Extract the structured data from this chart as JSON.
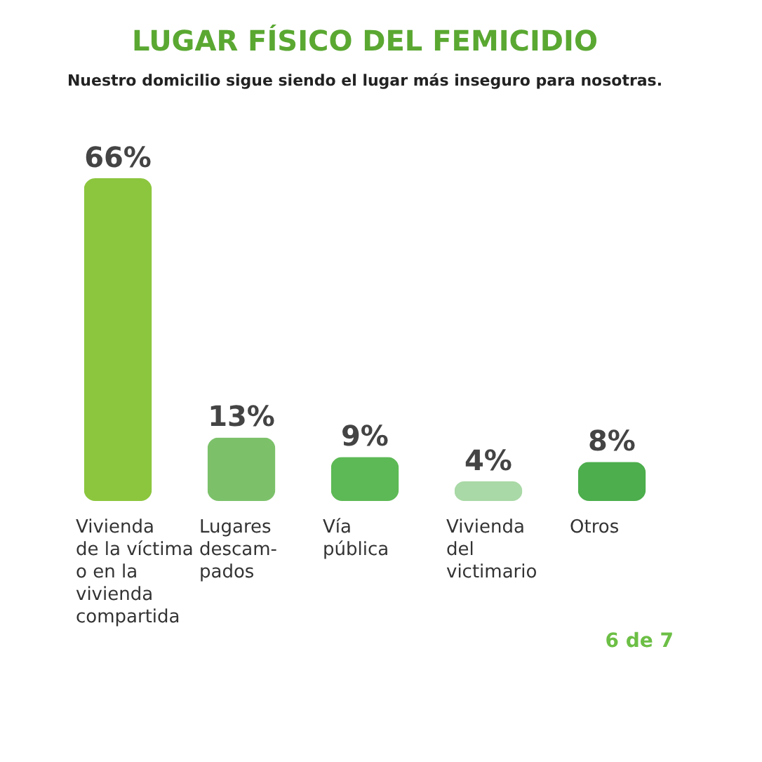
{
  "chart_data": {
    "type": "bar",
    "title": "LUGAR FÍSICO DEL FEMICIDIO",
    "subtitle": "Nuestro domicilio sigue siendo el lugar más inseguro para nosotras.",
    "categories": [
      "Vivienda\nde la víctima\no en la\nvivienda\ncompartida",
      "Lugares\ndescam-\npados",
      "Vía\npública",
      "Vivienda\ndel\nvictimario",
      "Otros"
    ],
    "values": [
      66,
      13,
      9,
      4,
      8
    ],
    "colors": [
      "#8cc63e",
      "#7cc16a",
      "#5db955",
      "#a9d9a6",
      "#4cae4c"
    ],
    "value_labels": [
      "66%",
      "13%",
      "9%",
      "4%",
      "8%"
    ],
    "tick_labels": "x",
    "grid": false,
    "annotations": [
      "6 de 7"
    ]
  }
}
